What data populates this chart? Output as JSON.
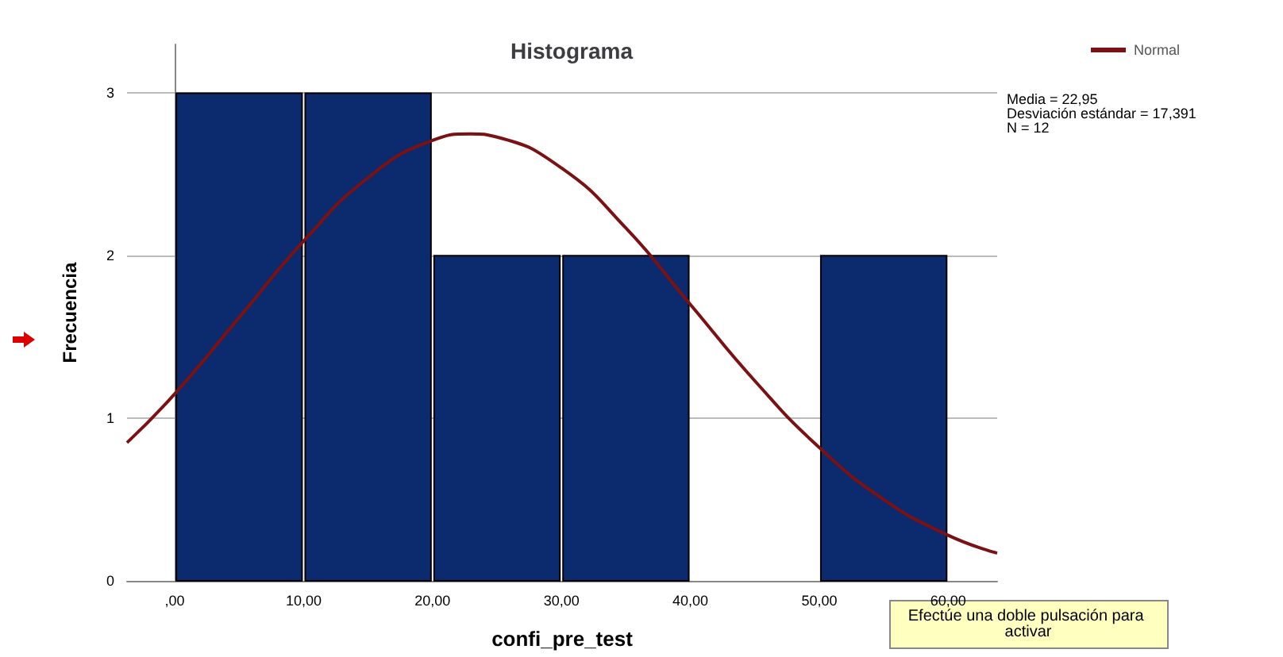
{
  "chart_data": {
    "type": "histogram",
    "title": "Histograma",
    "xlabel": "confi_pre_test",
    "ylabel": "Frecuencia",
    "bins": [
      0,
      10,
      20,
      30,
      40,
      50,
      60
    ],
    "values": [
      3,
      3,
      2,
      2,
      0,
      2
    ],
    "color": "#0c2a6e",
    "series": [
      {
        "name": "Normal",
        "type": "line",
        "color": "#7b1113",
        "x": [
          -3.7,
          0,
          5,
          10,
          15,
          20,
          22.95,
          25,
          30,
          35,
          40,
          45,
          50,
          55,
          60,
          63.8
        ],
        "values": [
          0.85,
          1.15,
          1.62,
          2.09,
          2.48,
          2.71,
          2.75,
          2.73,
          2.54,
          2.17,
          1.7,
          1.23,
          0.82,
          0.5,
          0.28,
          0.17
        ]
      }
    ],
    "xlim": [
      -3.7,
      63.8
    ],
    "ylim": [
      0,
      3.3
    ],
    "xticks": [
      {
        "value": 0,
        "label": ",00"
      },
      {
        "value": 10,
        "label": "10,00"
      },
      {
        "value": 20,
        "label": "20,00"
      },
      {
        "value": 30,
        "label": "30,00"
      },
      {
        "value": 40,
        "label": "40,00"
      },
      {
        "value": 50,
        "label": "50,00"
      },
      {
        "value": 60,
        "label": "60,00"
      }
    ],
    "yticks": [
      0,
      1,
      2,
      3
    ],
    "grid": "y",
    "legend": "top right",
    "annotations": [
      "Media = 22,95",
      "Desviación estándar = 17,391",
      "N = 12",
      "Efectúe una doble pulsación para activar"
    ]
  }
}
